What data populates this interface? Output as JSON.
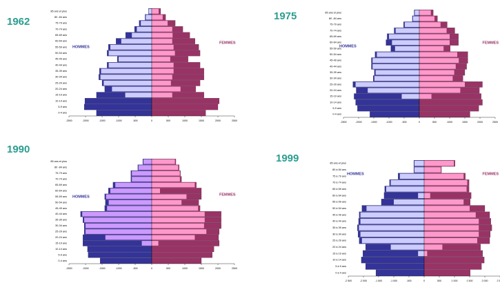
{
  "chart_data": [
    {
      "type": "bar",
      "orientation": "horizontal",
      "title": "1962",
      "left_label": "HOMMES",
      "right_label": "FEMMES",
      "categories": [
        "85 ans et plus",
        "80 -84 ans",
        "75-79 ans",
        "70-74 ans",
        "65-69 ans",
        "60-64 ans",
        "55-59 ans",
        "50-54 ans",
        "45-49 ans",
        "40-44 ans",
        "35-39 ans",
        "30-34 ans",
        "25-29 ans",
        "20-24 ans",
        "15-19 ans",
        "10-14 ans",
        "5-9 ans",
        "0-4 ans"
      ],
      "series": [
        {
          "color": "#333399",
          "values": [
            -100,
            -200,
            -380,
            -520,
            -790,
            -1080,
            -1310,
            -1350,
            -1040,
            -1350,
            -1580,
            -1600,
            -1500,
            -1420,
            -1670,
            -2020,
            -2040,
            -1670
          ]
        },
        {
          "color": "#ccccff",
          "values": [
            -90,
            -180,
            -330,
            -450,
            -600,
            -920,
            -1250,
            -1300,
            -1000,
            -1300,
            -1530,
            -1550,
            -1450,
            -1200,
            -800,
            0,
            0,
            0
          ]
        },
        {
          "color": "#993366",
          "values": [
            270,
            420,
            710,
            940,
            1150,
            1310,
            1420,
            1460,
            1100,
            1460,
            1580,
            1580,
            1460,
            1330,
            1580,
            2040,
            2000,
            1630
          ]
        },
        {
          "color": "#ff99cc",
          "values": [
            210,
            330,
            480,
            620,
            630,
            620,
            660,
            700,
            560,
            660,
            660,
            620,
            580,
            870,
            620,
            0,
            0,
            0
          ]
        }
      ],
      "xlim": [
        -2500,
        2500
      ],
      "xticks": [
        -2500,
        -2000,
        -1500,
        -1000,
        -500,
        0,
        500,
        1000,
        1500,
        2000,
        2500
      ]
    },
    {
      "type": "bar",
      "orientation": "horizontal",
      "title": "1975",
      "left_label": "HOMMES",
      "right_label": "FEMMES",
      "categories": [
        "85 ans et plus",
        "80 -84 ans",
        "75-79 ans",
        "70-74 ans",
        "65-69 ans",
        "60-64 ans",
        "55-59 ans",
        "50-54 ans",
        "45-49 ans",
        "40-44 ans",
        "35-39 ans",
        "30-34 ans",
        "25-29 ans",
        "20-24 ans",
        "15-19 ans",
        "10-14 ans",
        "5-9 ans",
        "0-4 ans"
      ],
      "series": [
        {
          "color": "#333399",
          "values": [
            -170,
            -230,
            -520,
            -830,
            -1060,
            -1100,
            -940,
            -1460,
            -1580,
            -1580,
            -1480,
            -1520,
            -2190,
            -2080,
            -2150,
            -2100,
            -2040,
            -1630
          ]
        },
        {
          "color": "#ccccff",
          "values": [
            -150,
            -210,
            -480,
            -780,
            -1000,
            -900,
            -800,
            -1400,
            -1540,
            -1540,
            -1440,
            -1480,
            -2100,
            -1700,
            -580,
            0,
            0,
            0
          ]
        },
        {
          "color": "#993366",
          "values": [
            460,
            600,
            920,
            1170,
            1290,
            1290,
            1020,
            1600,
            1600,
            1560,
            1500,
            1440,
            2080,
            1980,
            2040,
            2080,
            1960,
            1670
          ]
        },
        {
          "color": "#ff99cc",
          "values": [
            380,
            500,
            700,
            900,
            1000,
            1000,
            800,
            1250,
            1300,
            1200,
            1150,
            1100,
            1500,
            1350,
            400,
            0,
            0,
            0
          ]
        }
      ],
      "xlim": [
        -2500,
        2500
      ],
      "xticks": [
        -2500,
        -2000,
        -1500,
        -1000,
        -500,
        0,
        500,
        1000,
        1500,
        2000,
        2500
      ]
    },
    {
      "type": "bar",
      "orientation": "horizontal",
      "title": "1990",
      "left_label": "HOMMES",
      "right_label": "FEMMES",
      "categories": [
        "85 ans et plus",
        "80 -84 ans",
        "75-79 ans",
        "70-74 ans",
        "65-69 ans",
        "60-64 ans",
        "55-59 ans",
        "50-54 ans",
        "45-49 ans",
        "40-44 ans",
        "35-39 ans",
        "30-34 ans",
        "25-29 ans",
        "20-24 ans",
        "15-19 ans",
        "10-14 ans",
        "5-9 ans",
        "0-4 ans"
      ],
      "series": [
        {
          "color": "#333399",
          "values": [
            -270,
            -420,
            -630,
            -630,
            -1170,
            -1310,
            -1420,
            -1400,
            -1420,
            -2150,
            -2080,
            -2040,
            -2040,
            -2080,
            -2080,
            -1940,
            -1920,
            -1560
          ]
        },
        {
          "color": "#cc99ff",
          "values": [
            -250,
            -400,
            -600,
            -600,
            -1100,
            -1250,
            -1380,
            -1300,
            -1350,
            -2100,
            -2040,
            -2000,
            -2000,
            -1400,
            -300,
            0,
            0,
            0
          ]
        },
        {
          "color": "#993366",
          "values": [
            730,
            830,
            870,
            900,
            1350,
            1500,
            1500,
            1420,
            1460,
            2100,
            2100,
            2100,
            2040,
            2020,
            2040,
            1880,
            1830,
            1500
          ]
        },
        {
          "color": "#ff99cc",
          "values": [
            700,
            800,
            850,
            850,
            1300,
            250,
            1050,
            900,
            1400,
            1600,
            1600,
            1580,
            1650,
            1300,
            200,
            0,
            0,
            0
          ]
        }
      ],
      "xlim": [
        -2500,
        2500
      ],
      "xticks": [
        -2500,
        -2000,
        -1500,
        -1000,
        -500,
        0,
        500,
        1000,
        1500,
        2000,
        2500
      ]
    },
    {
      "type": "bar",
      "orientation": "horizontal",
      "title": "1999",
      "left_label": "HOMMES",
      "right_label": "FEMMES",
      "categories": [
        "85 ans et plus",
        "80 à 84 ans",
        "75 à 79 ans",
        "70 à 74 ans",
        "65 à 69 ans",
        "60 à 64 ans",
        "55 à 59 ans",
        "50 à 54 ans",
        "45 à 49 ans",
        "40 à 44 ans",
        "35 à 39 ans",
        "30 à 34 ans",
        "25 à 29 ans",
        "20 à 24 ans",
        "15 à 19 ans",
        "10 à 14 ans",
        "5 à 9 ans",
        "0 à 4 ans"
      ],
      "series": [
        {
          "color": "#333399",
          "values": [
            -340,
            -340,
            -860,
            -1140,
            -1300,
            -1320,
            -1410,
            -2050,
            -2140,
            -2160,
            -2200,
            -2180,
            -2140,
            -1930,
            -2020,
            -2070,
            -1930,
            -1590
          ]
        },
        {
          "color": "#ccccff",
          "values": [
            -320,
            -320,
            -800,
            -1100,
            -1250,
            -200,
            -1000,
            -1900,
            -2100,
            -2100,
            -2150,
            -2100,
            -2050,
            -1100,
            -200,
            0,
            0,
            0
          ]
        },
        {
          "color": "#993366",
          "values": [
            1020,
            570,
            1360,
            1480,
            1480,
            1550,
            1520,
            2000,
            2160,
            2200,
            2230,
            2180,
            2160,
            1860,
            1930,
            1980,
            1890,
            1520
          ]
        },
        {
          "color": "#ff99cc",
          "values": [
            980,
            550,
            1300,
            1420,
            1400,
            200,
            1300,
            1500,
            1700,
            1800,
            1800,
            1800,
            1750,
            600,
            100,
            0,
            0,
            0
          ]
        }
      ],
      "xlim": [
        -2500,
        2500
      ],
      "xticks": [
        {
          "value": -2500,
          "label": "-2 500"
        },
        {
          "value": -2000,
          "label": "-2 000"
        },
        {
          "value": -1500,
          "label": "-1 500"
        },
        {
          "value": -1000,
          "label": "-1 000"
        },
        -500,
        0,
        500,
        {
          "value": 1000,
          "label": "1 000"
        },
        {
          "value": 1500,
          "label": "1 500"
        },
        {
          "value": 2000,
          "label": "2 000"
        },
        {
          "value": 2500,
          "label": "2 500"
        }
      ]
    }
  ]
}
